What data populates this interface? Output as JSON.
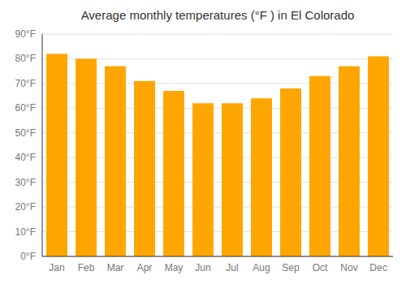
{
  "chart_data": {
    "type": "bar",
    "title": "Average monthly temperatures (°F ) in El Colorado",
    "categories": [
      "Jan",
      "Feb",
      "Mar",
      "Apr",
      "May",
      "Jun",
      "Jul",
      "Aug",
      "Sep",
      "Oct",
      "Nov",
      "Dec"
    ],
    "values": [
      82,
      80,
      77,
      71,
      67,
      62,
      62,
      64,
      68,
      73,
      77,
      81
    ],
    "color": "#FFA500",
    "ylim": [
      0,
      90
    ],
    "yticks": [
      {
        "value": 0,
        "label": "0°F"
      },
      {
        "value": 10,
        "label": "10°F"
      },
      {
        "value": 20,
        "label": "20°F"
      },
      {
        "value": 30,
        "label": "30°F"
      },
      {
        "value": 40,
        "label": "40°F"
      },
      {
        "value": 50,
        "label": "50°F"
      },
      {
        "value": 60,
        "label": "60°F"
      },
      {
        "value": 70,
        "label": "70°F"
      },
      {
        "value": 80,
        "label": "80°F"
      },
      {
        "value": 90,
        "label": "90°F"
      }
    ],
    "grid": true
  }
}
